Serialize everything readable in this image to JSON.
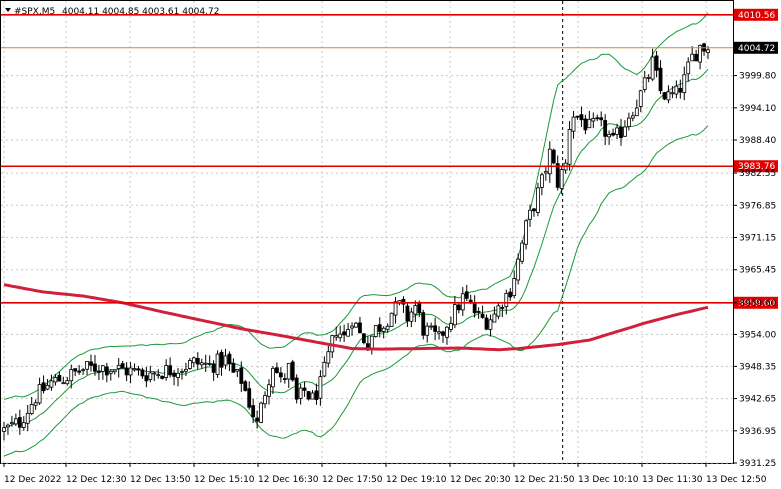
{
  "header": {
    "symbol": "#SPX,M5",
    "ohlc": "4004.11 4004.85 4003.61 4004.72"
  },
  "chart_data": {
    "type": "candlestick",
    "ylim": [
      3931.25,
      4013.0
    ],
    "y_ticks": [
      "3999.80",
      "3994.10",
      "3988.40",
      "3982.55",
      "3976.85",
      "3971.15",
      "3965.45",
      "3959.60",
      "3954.00",
      "3948.35",
      "3942.65",
      "3936.95",
      "3931.25"
    ],
    "y_tick_values": [
      3999.8,
      3994.1,
      3988.4,
      3982.55,
      3976.85,
      3971.15,
      3965.45,
      3959.6,
      3954.0,
      3948.35,
      3942.65,
      3936.95,
      3931.25
    ],
    "x_ticks": [
      "12 Dec 2022",
      "12 Dec 12:30",
      "12 Dec 13:50",
      "12 Dec 15:10",
      "12 Dec 16:30",
      "12 Dec 17:50",
      "12 Dec 19:10",
      "12 Dec 20:30",
      "12 Dec 21:50",
      "13 Dec 10:10",
      "13 Dec 11:30",
      "13 Dec 12:50"
    ],
    "bar_count": 176,
    "levels": [
      {
        "label": "4010.56",
        "value": 4010.56,
        "color": "#e00000"
      },
      {
        "label": "3983.76",
        "value": 3983.76,
        "color": "#e00000"
      },
      {
        "label": "3959.60",
        "value": 3959.6,
        "color": "#e00000"
      }
    ],
    "current_price": {
      "label": "4004.72",
      "value": 4004.72
    },
    "session_break_index": 141,
    "close_path": [
      [
        0,
        3937.0
      ],
      [
        4,
        3938.5
      ],
      [
        8,
        3943.0
      ],
      [
        12,
        3945.5
      ],
      [
        16,
        3946.5
      ],
      [
        20,
        3947.8
      ],
      [
        24,
        3948.3
      ],
      [
        28,
        3948.0
      ],
      [
        32,
        3947.5
      ],
      [
        36,
        3947.0
      ],
      [
        40,
        3947.5
      ],
      [
        44,
        3948.0
      ],
      [
        48,
        3949.0
      ],
      [
        52,
        3948.5
      ],
      [
        56,
        3949.5
      ],
      [
        58,
        3947.0
      ],
      [
        60,
        3946.0
      ],
      [
        62,
        3942.0
      ],
      [
        64,
        3938.0
      ],
      [
        66,
        3944.0
      ],
      [
        68,
        3949.0
      ],
      [
        70,
        3945.5
      ],
      [
        72,
        3948.0
      ],
      [
        74,
        3942.0
      ],
      [
        76,
        3944.0
      ],
      [
        78,
        3942.5
      ],
      [
        80,
        3945.0
      ],
      [
        82,
        3950.0
      ],
      [
        84,
        3955.0
      ],
      [
        86,
        3953.5
      ],
      [
        88,
        3957.0
      ],
      [
        90,
        3954.0
      ],
      [
        92,
        3952.5
      ],
      [
        94,
        3955.0
      ],
      [
        96,
        3956.0
      ],
      [
        98,
        3958.0
      ],
      [
        100,
        3959.0
      ],
      [
        102,
        3957.0
      ],
      [
        104,
        3959.0
      ],
      [
        106,
        3955.0
      ],
      [
        108,
        3954.0
      ],
      [
        110,
        3953.0
      ],
      [
        112,
        3956.0
      ],
      [
        114,
        3958.0
      ],
      [
        116,
        3960.5
      ],
      [
        118,
        3959.0
      ],
      [
        120,
        3957.0
      ],
      [
        122,
        3956.5
      ],
      [
        124,
        3957.5
      ],
      [
        126,
        3960.0
      ],
      [
        128,
        3962.0
      ],
      [
        130,
        3967.0
      ],
      [
        132,
        3973.0
      ],
      [
        134,
        3977.0
      ],
      [
        136,
        3981.0
      ],
      [
        138,
        3986.0
      ],
      [
        140,
        3981.0
      ],
      [
        142,
        3984.0
      ],
      [
        143,
        3991.0
      ],
      [
        144,
        3993.0
      ],
      [
        146,
        3992.0
      ],
      [
        148,
        3990.5
      ],
      [
        150,
        3991.0
      ],
      [
        152,
        3990.0
      ],
      [
        154,
        3988.0
      ],
      [
        156,
        3990.0
      ],
      [
        158,
        3993.0
      ],
      [
        160,
        3995.0
      ],
      [
        162,
        3998.0
      ],
      [
        164,
        4002.0
      ],
      [
        166,
        3997.0
      ],
      [
        168,
        3996.0
      ],
      [
        170,
        3996.5
      ],
      [
        172,
        3999.0
      ],
      [
        174,
        4003.0
      ],
      [
        176,
        4005.0
      ],
      [
        178,
        4004.72
      ]
    ],
    "ma_path": [
      [
        0,
        3962.8
      ],
      [
        10,
        3961.5
      ],
      [
        20,
        3960.8
      ],
      [
        30,
        3959.6
      ],
      [
        40,
        3958.0
      ],
      [
        50,
        3956.5
      ],
      [
        60,
        3955.0
      ],
      [
        70,
        3953.8
      ],
      [
        80,
        3952.5
      ],
      [
        88,
        3951.5
      ],
      [
        95,
        3951.4
      ],
      [
        105,
        3951.5
      ],
      [
        115,
        3951.6
      ],
      [
        125,
        3951.3
      ],
      [
        130,
        3951.5
      ],
      [
        140,
        3952.2
      ],
      [
        148,
        3953.0
      ],
      [
        155,
        3954.5
      ],
      [
        162,
        3956.0
      ],
      [
        170,
        3957.5
      ],
      [
        178,
        3958.8
      ]
    ],
    "ma_color": "#d0203c",
    "band_width": [
      [
        0,
        5
      ],
      [
        30,
        4
      ],
      [
        60,
        7
      ],
      [
        80,
        9
      ],
      [
        100,
        6
      ],
      [
        122,
        4
      ],
      [
        128,
        6
      ],
      [
        140,
        20
      ],
      [
        145,
        16
      ],
      [
        160,
        9
      ],
      [
        178,
        10
      ]
    ]
  }
}
